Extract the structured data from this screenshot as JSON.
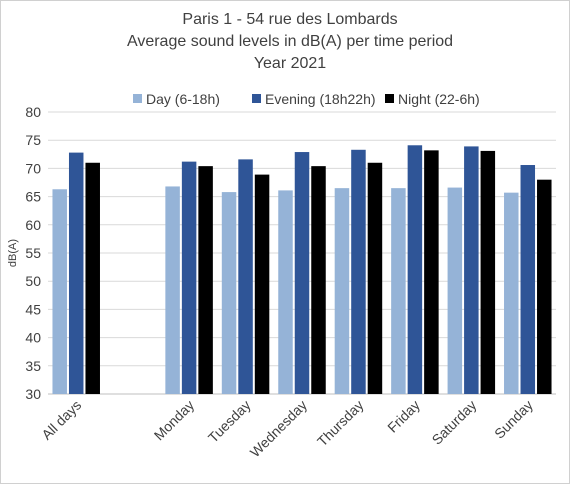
{
  "chart_data": {
    "type": "bar",
    "title": [
      "Paris 1 - 54 rue des Lombards",
      "Average sound levels in dB(A) per time period",
      "Year 2021"
    ],
    "ylabel": "dB(A)",
    "xlabel": "",
    "ylim": [
      30,
      80
    ],
    "yticks": [
      30,
      35,
      40,
      45,
      50,
      55,
      60,
      65,
      70,
      75,
      80
    ],
    "grid": true,
    "legend_position": "top",
    "categories": [
      "All days",
      "",
      "Monday",
      "Tuesday",
      "Wednesday",
      "Thursday",
      "Friday",
      "Saturday",
      "Sunday"
    ],
    "series": [
      {
        "name": "Day (6-18h)",
        "color": "#95b3d7",
        "values": [
          66.3,
          null,
          66.8,
          65.8,
          66.1,
          66.5,
          66.5,
          66.6,
          65.7
        ]
      },
      {
        "name": "Evening (18h22h)",
        "color": "#2f5597",
        "values": [
          72.8,
          null,
          71.2,
          71.6,
          72.9,
          73.3,
          74.1,
          73.9,
          70.6
        ]
      },
      {
        "name": "Night (22-6h)",
        "color": "#000000",
        "values": [
          71.0,
          null,
          70.4,
          68.9,
          70.4,
          71.0,
          73.2,
          73.1,
          68.0
        ]
      }
    ]
  }
}
